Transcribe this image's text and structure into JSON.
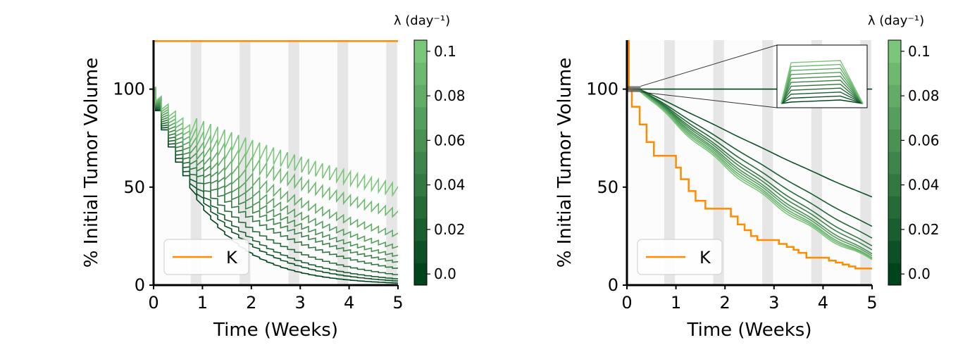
{
  "chart_data": [
    {
      "type": "line",
      "panel": "left",
      "xlabel": "Time (Weeks)",
      "ylabel": "% Initial Tumor Volume",
      "xlim": [
        0,
        5
      ],
      "ylim": [
        0,
        125
      ],
      "xticks": [
        "0",
        "1",
        "2",
        "3",
        "4",
        "5"
      ],
      "yticks": [
        "0",
        "50",
        "100"
      ],
      "legend": {
        "label": "K",
        "color": "#ff8c00",
        "position": "lower-left"
      },
      "treatment_bands_weeks": [
        [
          0.76,
          0.98
        ],
        [
          1.76,
          1.98
        ],
        [
          2.76,
          2.98
        ],
        [
          3.76,
          3.98
        ],
        [
          4.76,
          4.98
        ]
      ],
      "K_series": {
        "x": [
          0,
          5
        ],
        "y": [
          124.5,
          124.5
        ]
      },
      "lambda_series_endpoints": {
        "lambdas": [
          0.0,
          0.01,
          0.02,
          0.03,
          0.04,
          0.05,
          0.06,
          0.07,
          0.08,
          0.09,
          0.1
        ],
        "end_values_at_5_weeks": [
          1,
          2,
          3,
          5,
          8,
          11,
          14,
          18,
          24,
          34,
          45
        ],
        "start_value": 100
      },
      "colorbar": {
        "label": "λ (day⁻¹)",
        "ticks": [
          "0.0",
          "0.02",
          "0.04",
          "0.06",
          "0.08",
          "0.1"
        ],
        "range": [
          -0.005,
          0.105
        ]
      }
    },
    {
      "type": "line",
      "panel": "right",
      "xlabel": "Time (Weeks)",
      "ylabel": "% Initial Tumor Volume",
      "xlim": [
        0,
        5
      ],
      "ylim": [
        0,
        125
      ],
      "xticks": [
        "0",
        "1",
        "2",
        "3",
        "4",
        "5"
      ],
      "yticks": [
        "0",
        "50",
        "100"
      ],
      "legend": {
        "label": "K",
        "color": "#ff8c00",
        "position": "lower-left"
      },
      "treatment_bands_weeks": [
        [
          0.76,
          0.98
        ],
        [
          1.76,
          1.98
        ],
        [
          2.76,
          2.98
        ],
        [
          3.76,
          3.98
        ],
        [
          4.76,
          4.98
        ]
      ],
      "K_series": {
        "x": [
          0,
          0.04,
          0.1,
          0.26,
          0.4,
          0.55,
          0.62,
          1.0,
          1.1,
          1.26,
          1.4,
          1.6,
          2.0,
          2.12,
          2.26,
          2.4,
          2.53,
          2.66,
          3.0,
          3.1,
          3.26,
          3.4,
          3.5,
          3.66,
          4.0,
          4.12,
          4.26,
          4.4,
          4.53,
          4.66,
          5.0
        ],
        "y": [
          125,
          100,
          91,
          82,
          73,
          66,
          66,
          60,
          54,
          48,
          43,
          39,
          39,
          35,
          31,
          28,
          25,
          23,
          23,
          21,
          19.5,
          18,
          16.5,
          14,
          14,
          12.5,
          11.5,
          10.5,
          9.5,
          8.5,
          8.5
        ]
      },
      "lambda_series_endpoints": {
        "lambdas": [
          0.0,
          0.01,
          0.02,
          0.03,
          0.04,
          0.05,
          0.06,
          0.07,
          0.08,
          0.09,
          0.1
        ],
        "end_values_at_5_weeks": [
          100,
          45,
          30,
          24,
          20,
          18,
          16,
          15,
          14,
          13.5,
          13
        ],
        "start_value": 100
      },
      "inset": {
        "description": "zoom near t=0, y=100",
        "n_curves": 11
      },
      "colorbar": {
        "label": "λ (day⁻¹)",
        "ticks": [
          "0.0",
          "0.02",
          "0.04",
          "0.06",
          "0.08",
          "0.1"
        ],
        "range": [
          -0.005,
          0.105
        ]
      }
    }
  ]
}
